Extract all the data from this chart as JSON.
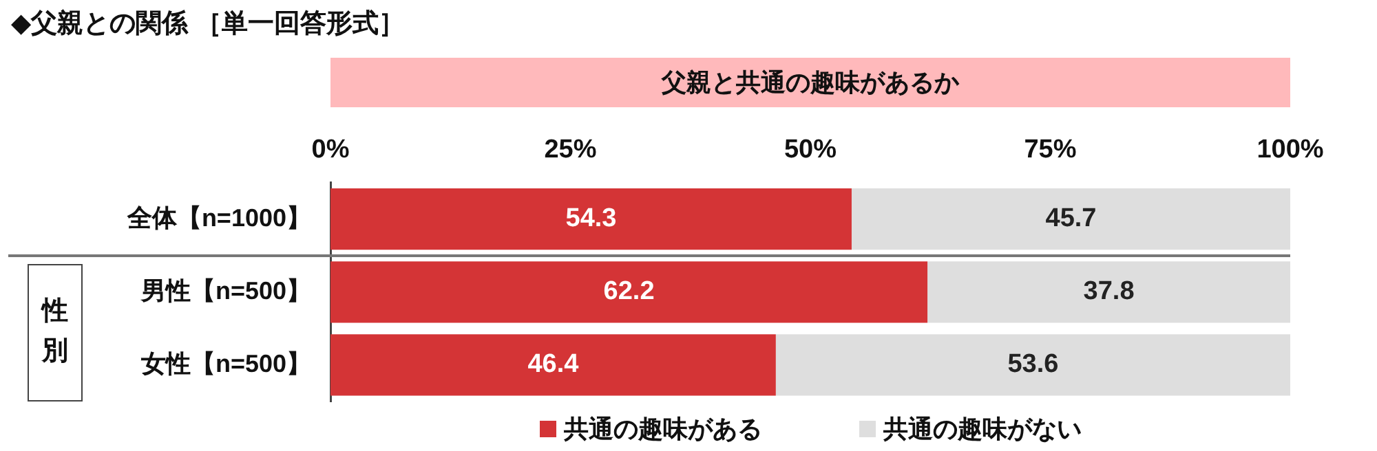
{
  "chart_data": {
    "type": "bar",
    "orientation": "horizontal",
    "stacked": true,
    "title": "◆父親との関係 ［単一回答形式］",
    "subtitle": "父親と共通の趣味があるか",
    "categories": [
      "全体【n=1000】",
      "男性【n=500】",
      "女性【n=500】"
    ],
    "series": [
      {
        "name": "共通の趣味がある",
        "color": "#d43436",
        "values": [
          54.3,
          62.2,
          46.4
        ]
      },
      {
        "name": "共通の趣味がない",
        "color": "#dedede",
        "values": [
          45.7,
          37.8,
          53.6
        ]
      }
    ],
    "xlim": [
      0,
      100
    ],
    "xticks": [
      {
        "value": 0,
        "label": "0%"
      },
      {
        "value": 25,
        "label": "25%"
      },
      {
        "value": 50,
        "label": "50%"
      },
      {
        "value": 75,
        "label": "75%"
      },
      {
        "value": 100,
        "label": "100%"
      }
    ],
    "annotations": [
      "性別"
    ],
    "data_labels": true,
    "legend": "bottom",
    "grid": false
  }
}
